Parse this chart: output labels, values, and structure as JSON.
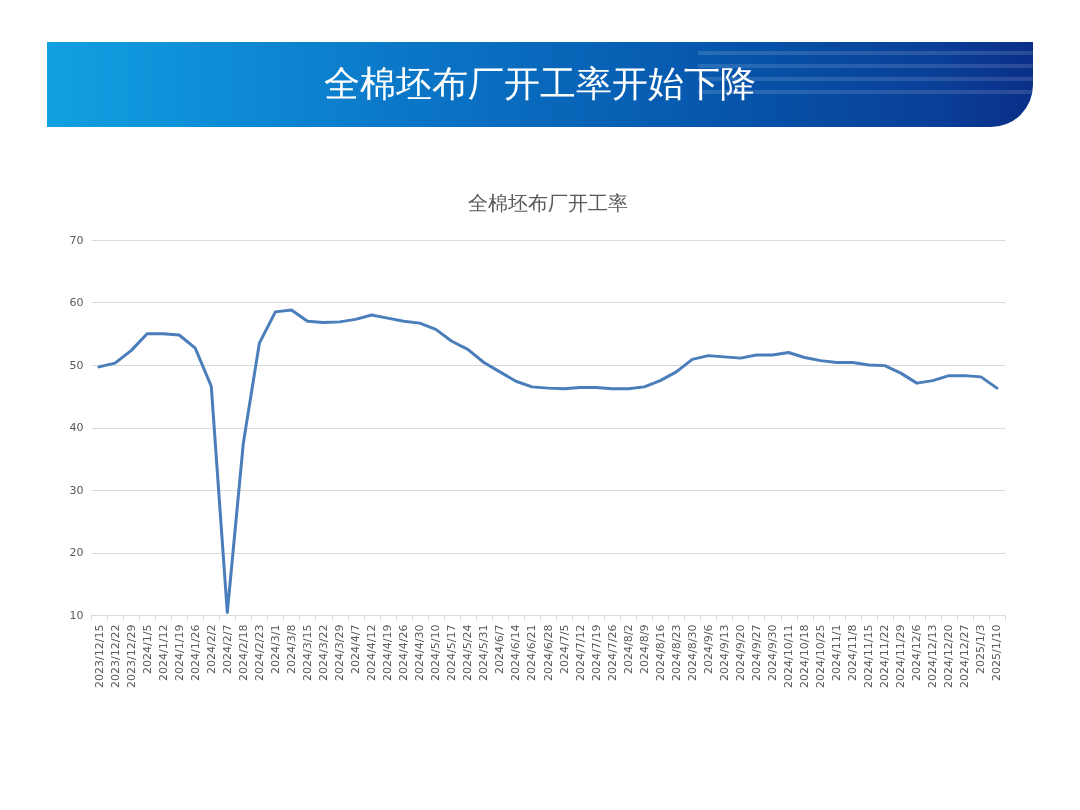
{
  "chart_data": {
    "type": "line",
    "title": "全棉坯布厂开工率开始下降",
    "subtitle": "全棉坯布厂开工率",
    "categories": [
      "2023/12/15",
      "2023/12/22",
      "2023/12/29",
      "2024/1/5",
      "2024/1/12",
      "2024/1/19",
      "2024/1/26",
      "2024/2/2",
      "2024/2/7",
      "2024/2/18",
      "2024/2/23",
      "2024/3/1",
      "2024/3/8",
      "2024/3/15",
      "2024/3/22",
      "2024/3/29",
      "2024/4/7",
      "2024/4/12",
      "2024/4/19",
      "2024/4/26",
      "2024/4/30",
      "2024/5/10",
      "2024/5/17",
      "2024/5/24",
      "2024/5/31",
      "2024/6/7",
      "2024/6/14",
      "2024/6/21",
      "2024/6/28",
      "2024/7/5",
      "2024/7/12",
      "2024/7/19",
      "2024/7/26",
      "2024/8/2",
      "2024/8/9",
      "2024/8/16",
      "2024/8/23",
      "2024/8/30",
      "2024/9/6",
      "2024/9/13",
      "2024/9/20",
      "2024/9/27",
      "2024/9/30",
      "2024/10/11",
      "2024/10/18",
      "2024/10/25",
      "2024/11/1",
      "2024/11/8",
      "2024/11/15",
      "2024/11/22",
      "2024/11/29",
      "2024/12/6",
      "2024/12/13",
      "2024/12/20",
      "2024/12/27",
      "2025/1/3",
      "2025/1/10"
    ],
    "series": [
      {
        "color": "#4a7ebb",
        "values": [
          49.7,
          50.3,
          52.3,
          55.0,
          55.0,
          54.8,
          52.7,
          46.6,
          10.4,
          37.5,
          53.5,
          58.5,
          58.8,
          57.0,
          56.8,
          56.9,
          57.3,
          58.0,
          57.5,
          57.0,
          56.7,
          55.7,
          53.8,
          52.5,
          50.4,
          48.9,
          47.4,
          46.5,
          46.3,
          46.2,
          46.4,
          46.4,
          46.2,
          46.2,
          46.5,
          47.5,
          48.9,
          50.9,
          51.5,
          51.3,
          51.1,
          51.6,
          51.6,
          52.0,
          51.2,
          50.7,
          50.4,
          50.4,
          50.0,
          49.9,
          48.7,
          47.1,
          47.5,
          48.3,
          48.3,
          48.1,
          46.3
        ]
      }
    ],
    "ylim": [
      10,
      70
    ],
    "yticks": [
      10,
      20,
      30,
      40,
      50,
      60,
      70
    ],
    "grid": "y",
    "marker": "none",
    "line_style": "solid"
  }
}
